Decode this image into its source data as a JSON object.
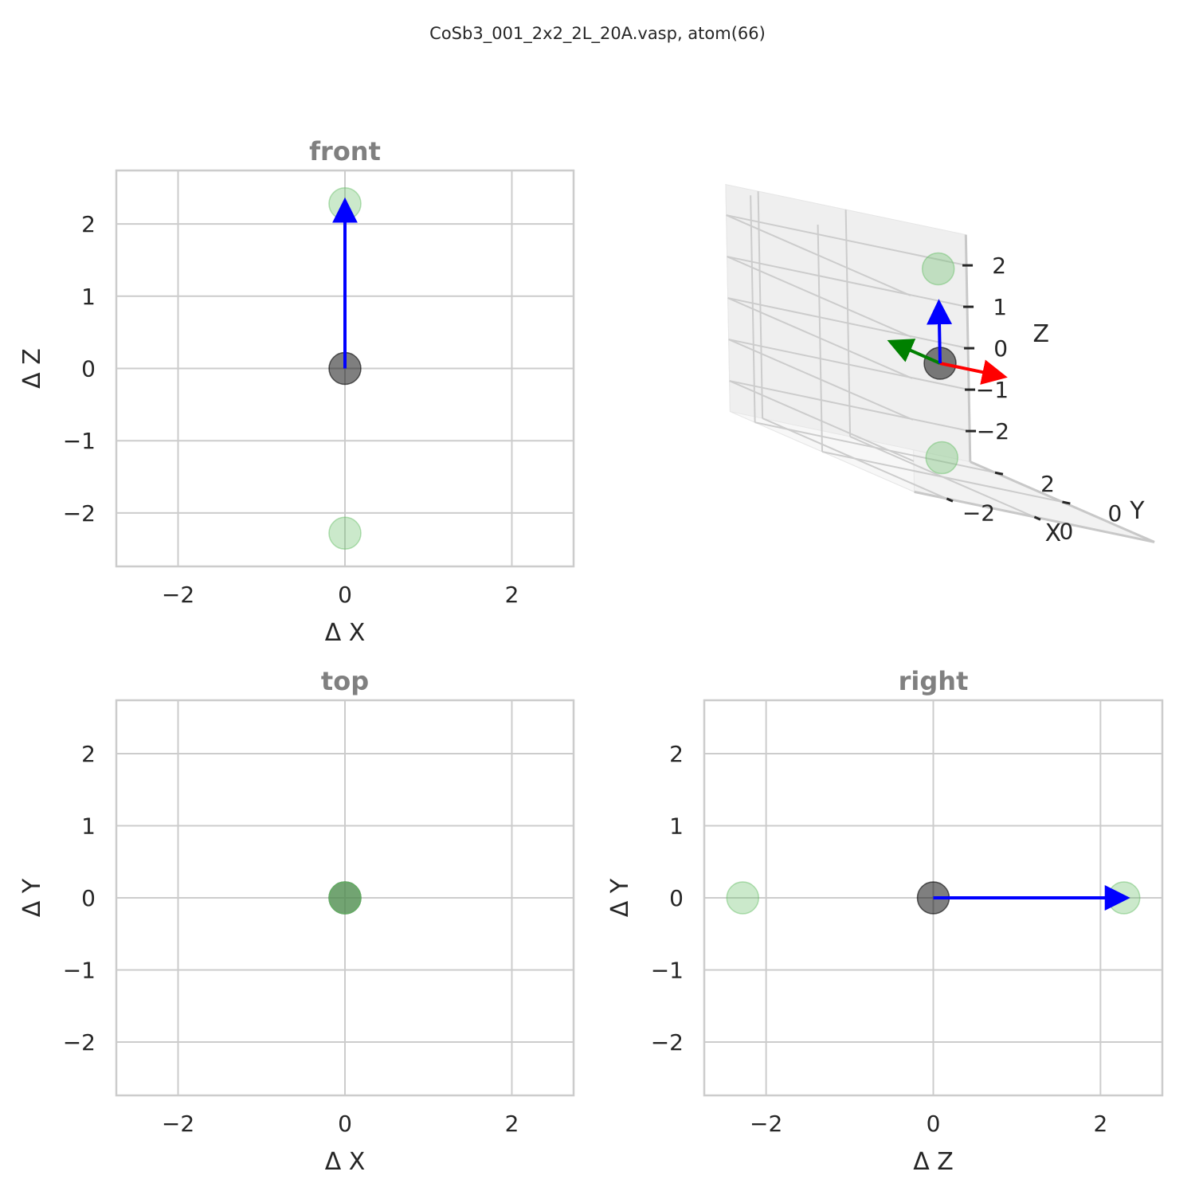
{
  "suptitle": "CoSb3_001_2x2_2L_20A.vasp, atom(66)",
  "colors": {
    "center_atom": "#000000",
    "neighbor_atom": "#6abf6a",
    "x_arrow": "#ff0000",
    "y_arrow": "#008000",
    "z_arrow": "#0000ff"
  },
  "chart_data": [
    {
      "type": "scatter",
      "view": "front",
      "title": "front",
      "xlabel": "Δ X",
      "ylabel": "Δ Z",
      "xlim": [
        -2.74,
        2.74
      ],
      "ylim": [
        -2.74,
        2.74
      ],
      "xticks": [
        -2,
        0,
        2
      ],
      "yticks": [
        -2,
        -1,
        0,
        1,
        2
      ],
      "xtick_labels": [
        "−2",
        "0",
        "2"
      ],
      "ytick_labels": [
        "−2",
        "−1",
        "0",
        "1",
        "2"
      ],
      "grid": true,
      "center": {
        "x": 0,
        "y": 0
      },
      "neighbors": [
        {
          "x": 0,
          "y": 2.28
        },
        {
          "x": 0,
          "y": -2.28
        }
      ],
      "arrows": [
        {
          "axis": "z",
          "from": [
            0,
            0
          ],
          "to": [
            0,
            2.28
          ]
        }
      ]
    },
    {
      "type": "scatter",
      "view": "top",
      "title": "top",
      "xlabel": "Δ X",
      "ylabel": "Δ Y",
      "xlim": [
        -2.74,
        2.74
      ],
      "ylim": [
        -2.74,
        2.74
      ],
      "xticks": [
        -2,
        0,
        2
      ],
      "yticks": [
        -2,
        -1,
        0,
        1,
        2
      ],
      "xtick_labels": [
        "−2",
        "0",
        "2"
      ],
      "ytick_labels": [
        "−2",
        "−1",
        "0",
        "1",
        "2"
      ],
      "grid": true,
      "center": {
        "x": 0,
        "y": 0
      },
      "neighbors": [
        {
          "x": 0,
          "y": 0
        },
        {
          "x": 0,
          "y": 0
        }
      ],
      "arrows": []
    },
    {
      "type": "scatter",
      "view": "right",
      "title": "right",
      "xlabel": "Δ Z",
      "ylabel": "Δ Y",
      "xlim": [
        -2.74,
        2.74
      ],
      "ylim": [
        -2.74,
        2.74
      ],
      "xticks": [
        -2,
        0,
        2
      ],
      "yticks": [
        -2,
        -1,
        0,
        1,
        2
      ],
      "xtick_labels": [
        "−2",
        "0",
        "2"
      ],
      "ytick_labels": [
        "−2",
        "−1",
        "0",
        "1",
        "2"
      ],
      "grid": true,
      "center": {
        "x": 0,
        "y": 0
      },
      "neighbors": [
        {
          "x": -2.28,
          "y": 0
        },
        {
          "x": 2.28,
          "y": 0
        }
      ],
      "arrows": [
        {
          "axis": "z",
          "from": [
            0,
            0
          ],
          "to": [
            2.28,
            0
          ]
        }
      ]
    },
    {
      "type": "scatter3d",
      "view": "3d",
      "xlabel": "X",
      "ylabel": "Y",
      "zlabel": "Z",
      "xticks": [
        -2,
        0
      ],
      "yticks": [
        0,
        2
      ],
      "zticks": [
        -2,
        -1,
        0,
        1,
        2
      ],
      "xtick_labels": [
        "−2",
        "0"
      ],
      "ytick_labels": [
        "0",
        "2"
      ],
      "ztick_labels": [
        "−2",
        "−1",
        "0",
        "1",
        "2"
      ],
      "center": {
        "x": 0,
        "y": 0,
        "z": 0
      },
      "neighbors": [
        {
          "x": 0,
          "y": 0,
          "z": 2.28
        },
        {
          "x": 0,
          "y": 0,
          "z": -2.28
        }
      ],
      "arrows": [
        {
          "axis": "x",
          "to": [
            1.4,
            0,
            0
          ]
        },
        {
          "axis": "y",
          "to": [
            0,
            1.4,
            0
          ]
        },
        {
          "axis": "z",
          "to": [
            0,
            0,
            1.4
          ]
        }
      ]
    }
  ]
}
